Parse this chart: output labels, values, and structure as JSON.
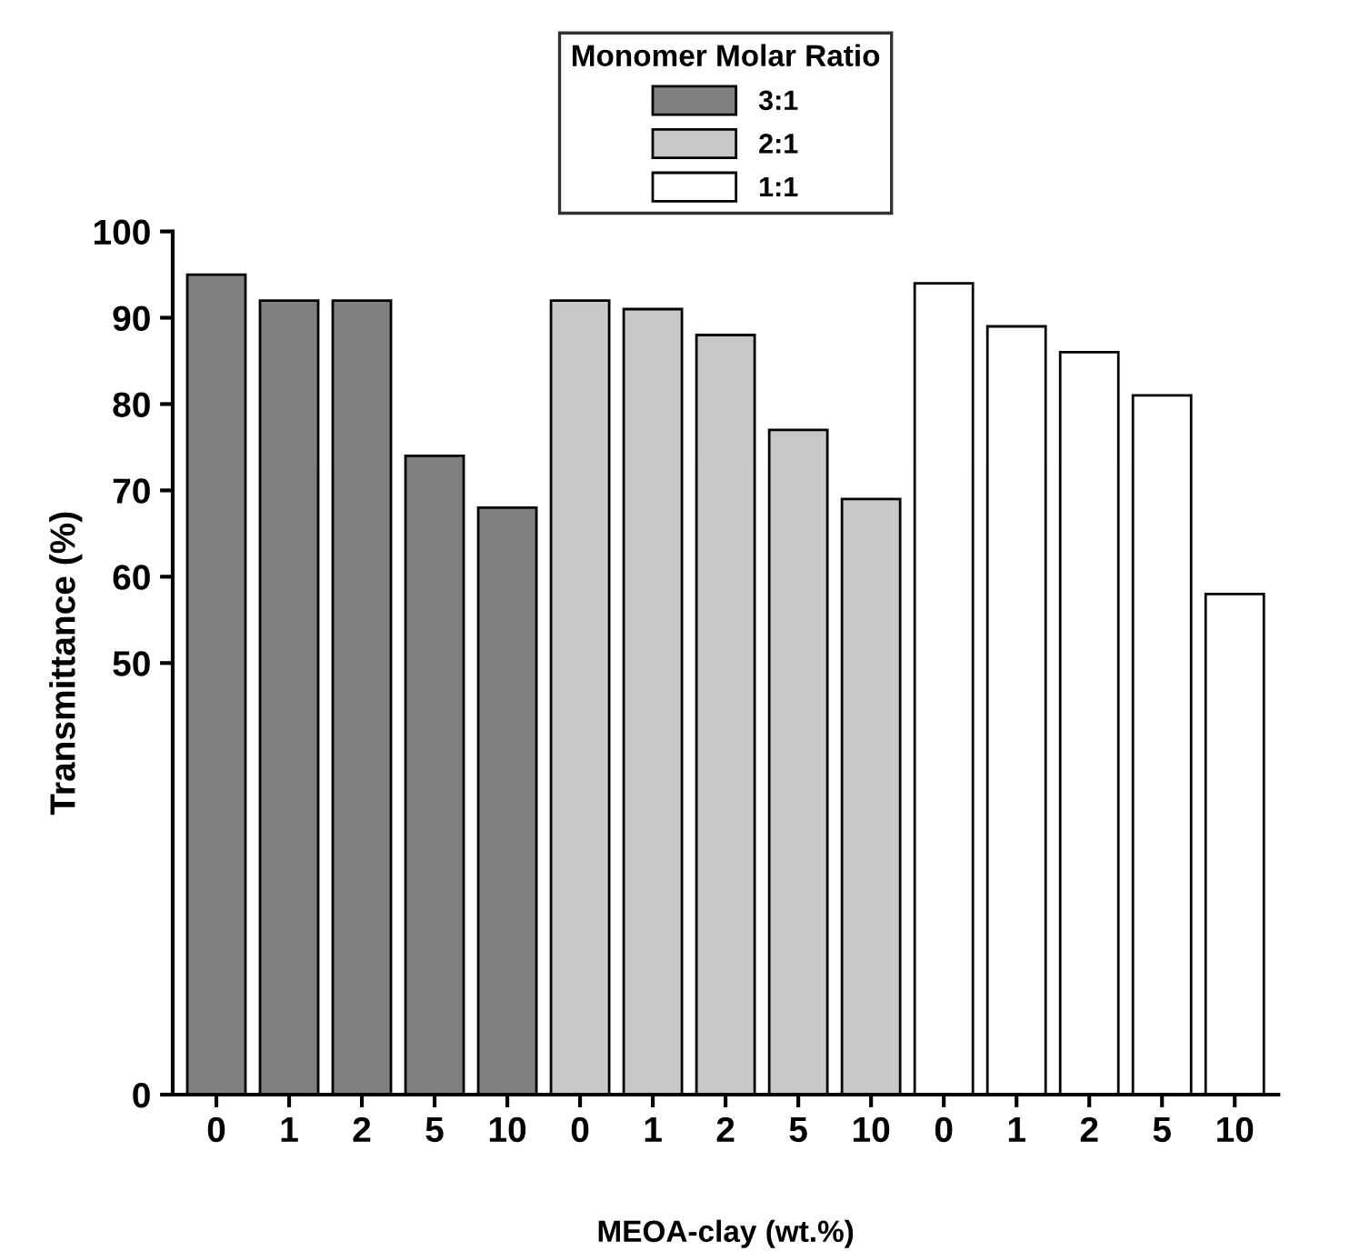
{
  "chart_data": {
    "type": "bar",
    "xlabel": "MEOA-clay (wt.%)",
    "ylabel": "Transmittance (%)",
    "legend_title": "Monomer Molar Ratio",
    "legend": "top",
    "categories": [
      "0",
      "1",
      "2",
      "5",
      "10",
      "0",
      "1",
      "2",
      "5",
      "10",
      "0",
      "1",
      "2",
      "5",
      "10"
    ],
    "series": [
      {
        "name": "3:1",
        "color": "#808080",
        "values": [
          95,
          92,
          92,
          74,
          68,
          null,
          null,
          null,
          null,
          null,
          null,
          null,
          null,
          null,
          null
        ]
      },
      {
        "name": "2:1",
        "color": "#c8c8c8",
        "values": [
          null,
          null,
          null,
          null,
          null,
          92,
          91,
          88,
          77,
          69,
          null,
          null,
          null,
          null,
          null
        ]
      },
      {
        "name": "1:1",
        "color": "#ffffff",
        "values": [
          null,
          null,
          null,
          null,
          null,
          null,
          null,
          null,
          null,
          null,
          94,
          89,
          86,
          81,
          58
        ]
      }
    ],
    "ylim": [
      0,
      100
    ],
    "yticks": [
      0,
      50,
      60,
      70,
      80,
      90,
      100
    ],
    "grid": false
  }
}
